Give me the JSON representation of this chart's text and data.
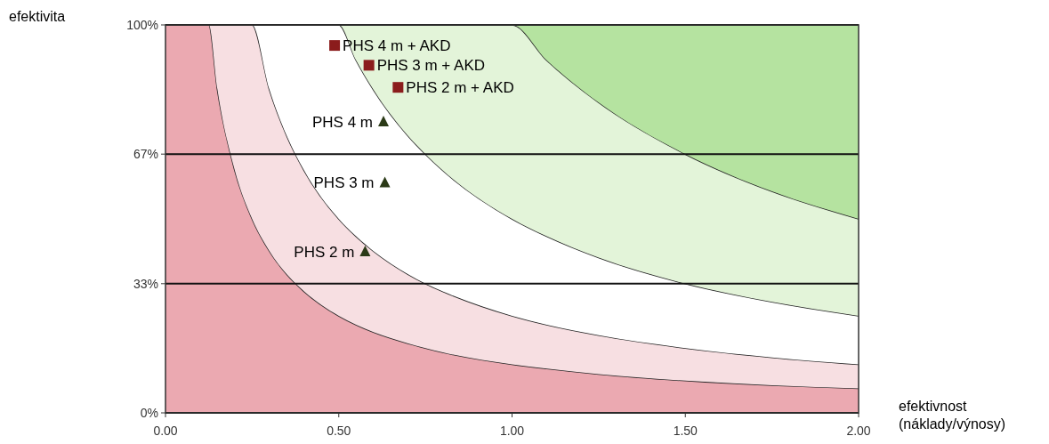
{
  "chart_data": {
    "type": "scatter",
    "xlabel": "efektivnost\n(náklady/výnosy)",
    "ylabel": "efektivita",
    "xlim": [
      0,
      2
    ],
    "ylim": [
      0,
      100
    ],
    "xticks": [
      {
        "value": 0,
        "label": "0.00"
      },
      {
        "value": 0.5,
        "label": "0.50"
      },
      {
        "value": 1,
        "label": "1.00"
      },
      {
        "value": 1.5,
        "label": "1.50"
      },
      {
        "value": 2,
        "label": "2.00"
      }
    ],
    "yticks": [
      {
        "value": 0,
        "label": "0%"
      },
      {
        "value": 33.3,
        "label": "33%"
      },
      {
        "value": 66.7,
        "label": "67%"
      },
      {
        "value": 100,
        "label": "100%"
      }
    ],
    "grid": "y",
    "stacked": true,
    "x": [
      0,
      0.125,
      0.15,
      0.2,
      0.25,
      0.3,
      0.35,
      0.4,
      0.5,
      0.55,
      0.6,
      0.7,
      0.75,
      0.8,
      1.0,
      1.1,
      1.25,
      1.5,
      1.75,
      2.0
    ],
    "series": [
      {
        "type": "area",
        "color": "#eba9b1",
        "values": [
          100,
          100,
          83.3,
          62.5,
          50,
          41.7,
          35.7,
          31.3,
          25,
          22.7,
          20.8,
          17.9,
          16.7,
          15.6,
          12.5,
          11.4,
          10,
          8.3,
          7.1,
          6.3
        ]
      },
      {
        "type": "area",
        "color": "#f7dfe2",
        "values": [
          0,
          0,
          16.7,
          37.5,
          50,
          41.6,
          35.7,
          31.2,
          25,
          22.8,
          20.9,
          17.8,
          16.6,
          15.7,
          12.5,
          11.3,
          10,
          8.4,
          7.2,
          6.2
        ]
      },
      {
        "type": "area",
        "color": "#ffffff",
        "values": [
          0,
          0,
          0,
          0,
          0,
          16.7,
          28.6,
          37.5,
          50,
          45.4,
          41.6,
          35.7,
          33.4,
          31.2,
          25,
          22.8,
          20,
          16.6,
          14.3,
          12.5
        ]
      },
      {
        "type": "area",
        "color": "#e3f4d9",
        "values": [
          0,
          0,
          0,
          0,
          0,
          0,
          0,
          0,
          0,
          9.1,
          16.7,
          28.6,
          33.3,
          37.5,
          50,
          45.4,
          40,
          33.4,
          28.5,
          25
        ]
      },
      {
        "type": "area",
        "color": "#b5e3a0",
        "values": [
          0,
          0,
          0,
          0,
          0,
          0,
          0,
          0,
          0,
          0,
          0,
          0,
          0,
          0,
          0,
          9.1,
          20,
          33.3,
          42.9,
          50
        ]
      },
      {
        "marker": "square",
        "color": "#8b1c1c",
        "x": [
          0.488,
          0.587,
          0.671
        ],
        "values": [
          94.7,
          89.6,
          83.9
        ]
      },
      {
        "marker": "triangle",
        "color": "#2b3a17",
        "x": [
          0.629,
          0.633,
          0.576
        ],
        "values": [
          75.0,
          59.3,
          41.5
        ]
      }
    ],
    "annotations": [
      {
        "text": "PHS 4 m + AKD",
        "x": 0.488,
        "y": 94.7
      },
      {
        "text": "PHS 3 m + AKD",
        "x": 0.587,
        "y": 89.6
      },
      {
        "text": "PHS 2 m + AKD",
        "x": 0.671,
        "y": 83.9
      },
      {
        "text": "PHS 4 m",
        "x": 0.629,
        "y": 75.0
      },
      {
        "text": "PHS 3 m",
        "x": 0.633,
        "y": 59.3
      },
      {
        "text": "PHS 2 m",
        "x": 0.576,
        "y": 41.5
      }
    ]
  }
}
